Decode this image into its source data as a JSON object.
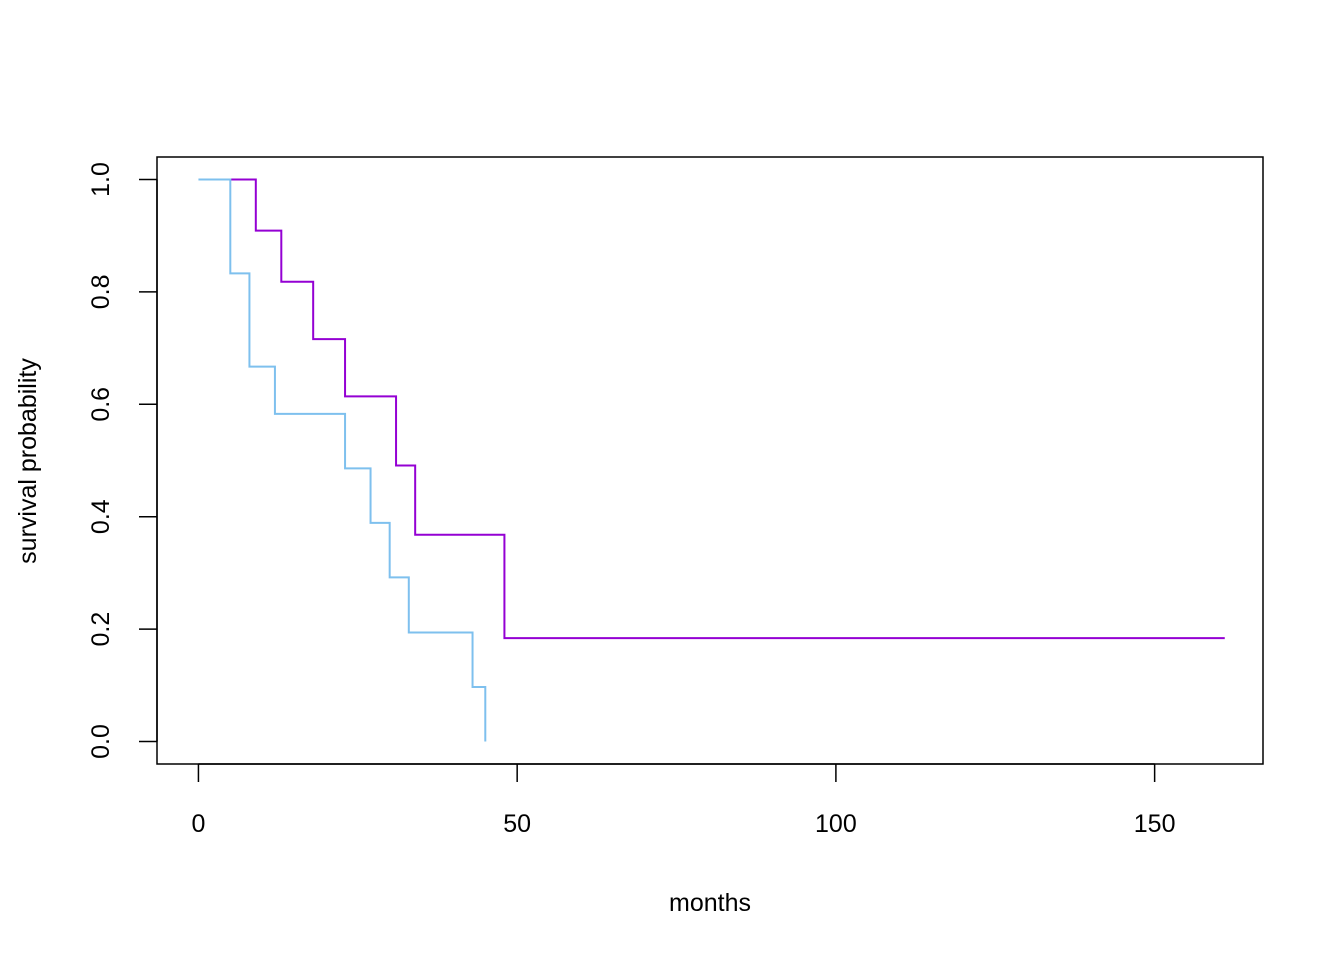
{
  "chart_data": {
    "type": "line",
    "step": true,
    "title": "",
    "xlabel": "months",
    "ylabel": "survival probability",
    "xlim": [
      -6.5,
      167
    ],
    "ylim": [
      -0.04,
      1.04
    ],
    "x_ticks": [
      0,
      50,
      100,
      150
    ],
    "x_tick_labels": [
      "0",
      "50",
      "100",
      "150"
    ],
    "y_ticks": [
      0.0,
      0.2,
      0.4,
      0.6,
      0.8,
      1.0
    ],
    "y_tick_labels": [
      "0.0",
      "0.2",
      "0.4",
      "0.6",
      "0.8",
      "1.0"
    ],
    "grid": false,
    "legend": "none",
    "series": [
      {
        "color": "#9400D3",
        "x": [
          5,
          9,
          13,
          18,
          23,
          31,
          34,
          48,
          161
        ],
        "y": [
          1.0,
          0.909,
          0.818,
          0.716,
          0.614,
          0.491,
          0.368,
          0.184,
          0.184
        ]
      },
      {
        "color": "#7EC0EE",
        "x": [
          0,
          5,
          8,
          12,
          23,
          27,
          30,
          33,
          43,
          45
        ],
        "y": [
          1.0,
          0.833,
          0.667,
          0.583,
          0.486,
          0.389,
          0.292,
          0.194,
          0.097,
          0.0
        ]
      }
    ]
  }
}
